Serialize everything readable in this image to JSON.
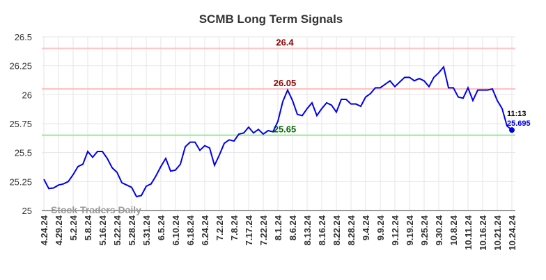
{
  "chart_data": {
    "type": "line",
    "title": "SCMB Long Term Signals",
    "categories": [
      "4.24.24",
      null,
      null,
      "4.29.24",
      null,
      null,
      "5.2.24",
      null,
      null,
      "5.8.24",
      null,
      null,
      "5.16.24",
      null,
      null,
      "5.22.24",
      null,
      null,
      "5.28.24",
      null,
      null,
      "5.31.24",
      null,
      null,
      "6.5.24",
      null,
      null,
      "6.10.24",
      null,
      null,
      "6.18.24",
      null,
      null,
      "6.24.24",
      null,
      null,
      "7.2.24",
      null,
      null,
      "7.8.24",
      null,
      null,
      "7.17.24",
      null,
      null,
      "7.22.24",
      null,
      null,
      "8.1.24",
      null,
      null,
      "8.6.24",
      null,
      null,
      "8.13.24",
      null,
      null,
      "8.16.24",
      null,
      null,
      "8.22.24",
      null,
      null,
      "8.28.24",
      null,
      null,
      "9.4.24",
      null,
      null,
      "9.9.24",
      null,
      null,
      "9.12.24",
      null,
      null,
      "9.19.24",
      null,
      null,
      "9.25.24",
      null,
      null,
      "9.30.24",
      null,
      null,
      "10.8.24",
      null,
      null,
      "10.11.24",
      null,
      null,
      "10.16.24",
      null,
      null,
      "10.21.24",
      null,
      null,
      "10.24.24"
    ],
    "values": [
      25.27,
      25.19,
      25.195,
      25.22,
      25.23,
      25.25,
      25.31,
      25.38,
      25.4,
      25.51,
      25.46,
      25.51,
      25.51,
      25.45,
      25.37,
      25.33,
      25.24,
      25.22,
      25.2,
      25.12,
      25.13,
      25.21,
      25.23,
      25.3,
      25.38,
      25.45,
      25.34,
      25.35,
      25.4,
      25.55,
      25.59,
      25.59,
      25.52,
      25.56,
      25.54,
      25.39,
      25.48,
      25.58,
      25.61,
      25.6,
      25.66,
      25.67,
      25.72,
      25.67,
      25.7,
      25.66,
      25.69,
      25.68,
      25.77,
      25.94,
      26.04,
      25.95,
      25.83,
      25.82,
      25.88,
      25.93,
      25.82,
      25.88,
      25.93,
      25.91,
      25.85,
      25.96,
      25.96,
      25.92,
      25.92,
      25.9,
      25.98,
      26.01,
      26.06,
      26.06,
      26.09,
      26.12,
      26.07,
      26.11,
      26.15,
      26.15,
      26.12,
      26.14,
      26.12,
      26.07,
      26.15,
      26.19,
      26.24,
      26.06,
      26.06,
      25.98,
      25.97,
      26.06,
      25.95,
      26.04,
      26.04,
      26.04,
      26.05,
      25.95,
      25.88,
      25.73,
      25.695
    ],
    "color": "#0000ee",
    "ylim": [
      25,
      26.5
    ],
    "yticks": [
      25,
      25.25,
      25.5,
      25.75,
      26,
      26.25,
      26.5
    ],
    "grid": true,
    "hlines": [
      {
        "value": 26.4,
        "color": "#ffc0c0",
        "label_color": "#8b0000"
      },
      {
        "value": 26.05,
        "color": "#ffc0c0",
        "label_color": "#8b0000"
      },
      {
        "value": 25.65,
        "color": "#90ee90",
        "label_color": "#006400"
      }
    ],
    "last_time": "11:13",
    "watermark": "Stock Traders Daily"
  }
}
